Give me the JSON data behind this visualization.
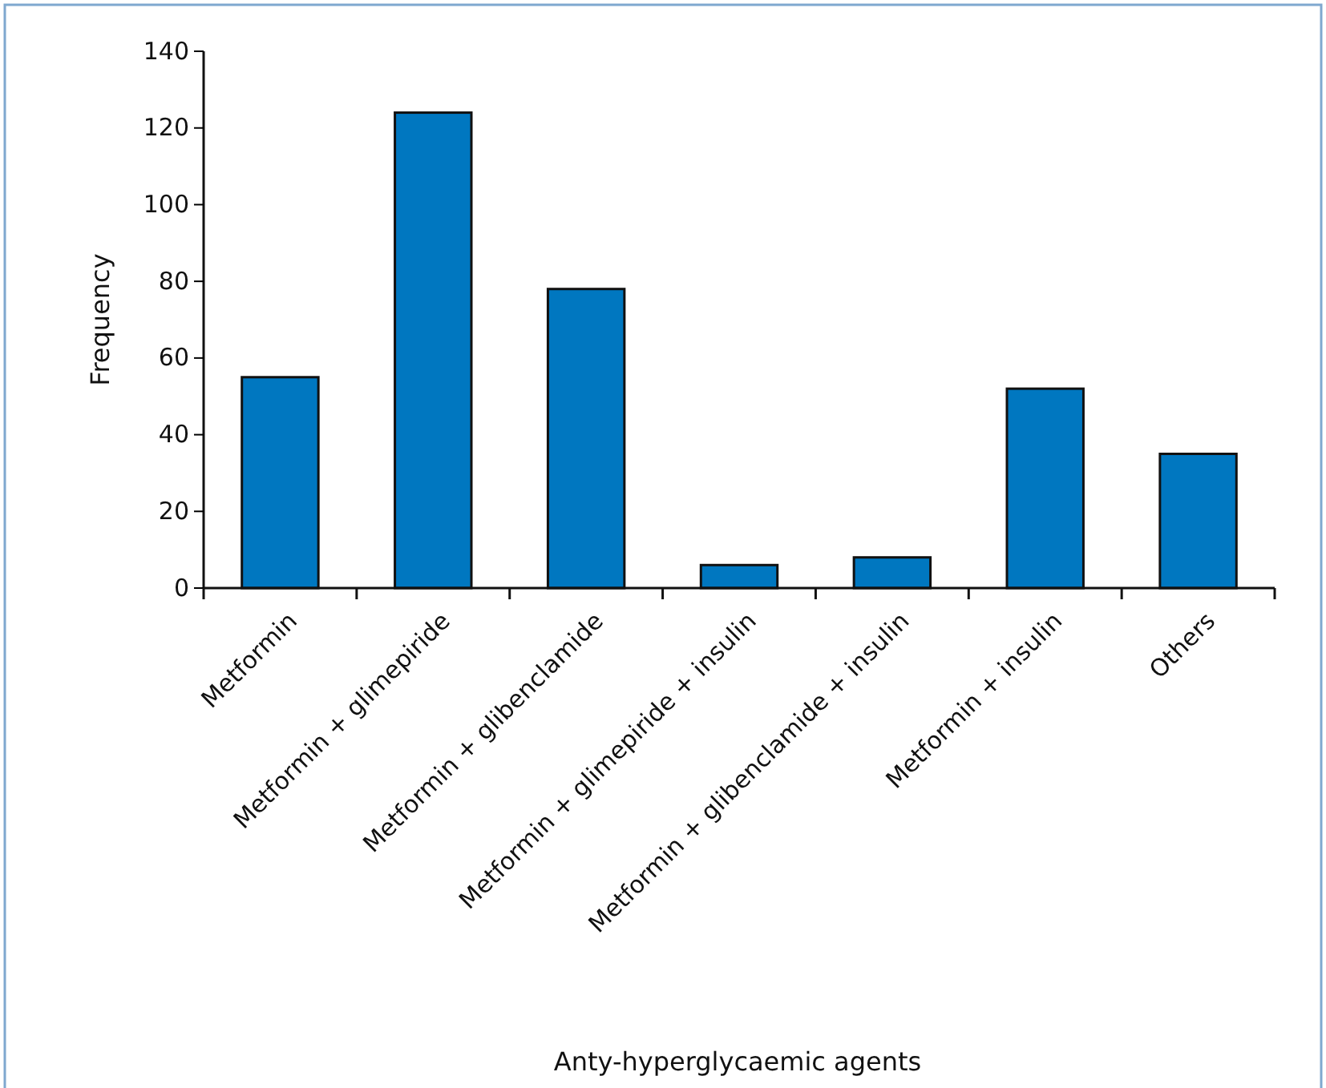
{
  "chart_data": {
    "type": "bar",
    "xlabel": "Anty-hyperglycaemic agents",
    "ylabel": "Frequency",
    "categories": [
      "Metformin",
      "Metformin + glimepiride",
      "Metformin + glibenclamide",
      "Metformin + glimepiride + insulin",
      "Metformin + glibenclamide + insulin",
      "Metformin + insulin",
      "Others"
    ],
    "values": [
      55,
      124,
      78,
      6,
      8,
      52,
      35
    ],
    "color": "#0077c0",
    "ylim": [
      0,
      140
    ],
    "yticks": [
      0,
      20,
      40,
      60,
      80,
      100,
      120,
      140
    ],
    "grid": false
  }
}
